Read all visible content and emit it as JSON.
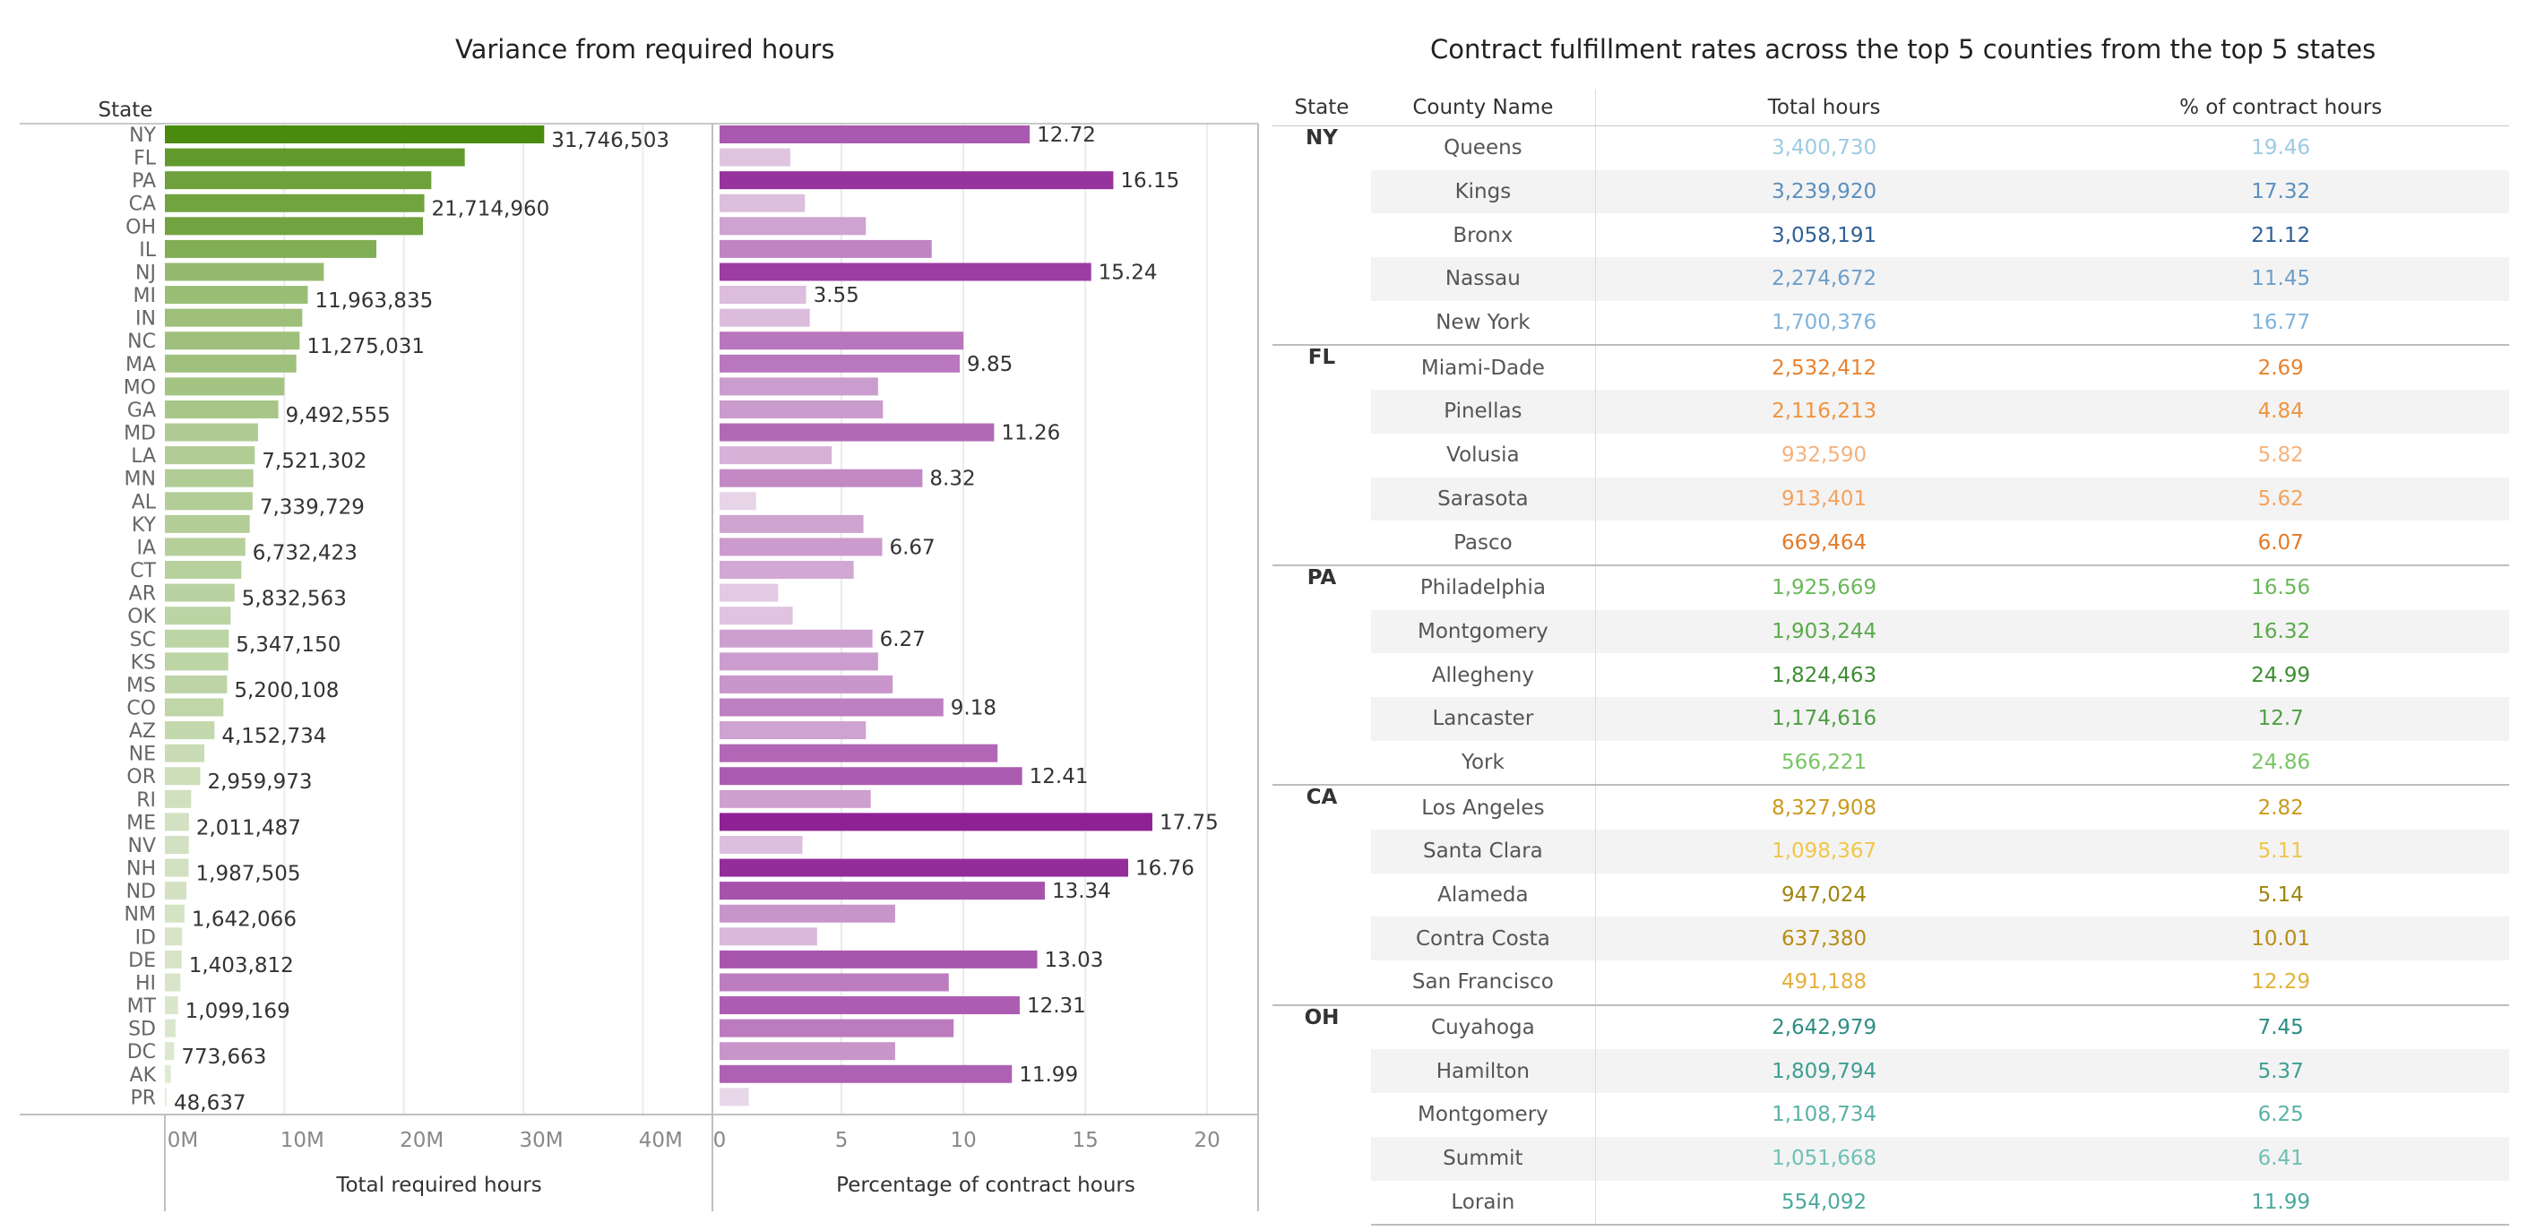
{
  "left_panel": {
    "title": "Variance from required hours",
    "state_header": "State",
    "bar_colors": [
      "#e6eedb",
      "#4a8a0c"
    ],
    "pct_colors": [
      "#efe4ef",
      "#8e2295"
    ]
  },
  "chart_data": [
    {
      "type": "bar",
      "title": "Variance from required hours",
      "orientation": "horizontal",
      "xlabel": "Total required hours",
      "ylabel": "State",
      "xlim": [
        0,
        45000000
      ],
      "xticks": [
        "0M",
        "10M",
        "20M",
        "30M",
        "40M"
      ],
      "categories": [
        "NY",
        "FL",
        "PA",
        "CA",
        "OH",
        "IL",
        "NJ",
        "MI",
        "IN",
        "NC",
        "MA",
        "MO",
        "GA",
        "MD",
        "LA",
        "MN",
        "AL",
        "KY",
        "IA",
        "CT",
        "AR",
        "OK",
        "SC",
        "KS",
        "MS",
        "CO",
        "AZ",
        "NE",
        "OR",
        "RI",
        "ME",
        "NV",
        "NH",
        "ND",
        "NM",
        "ID",
        "DE",
        "HI",
        "MT",
        "SD",
        "DC",
        "AK",
        "PR"
      ],
      "values": [
        31746503,
        25100000,
        22300000,
        21714960,
        21600000,
        17700000,
        13300000,
        11963835,
        11500000,
        11275031,
        11000000,
        10000000,
        9492555,
        7800000,
        7521302,
        7400000,
        7339729,
        7100000,
        6732423,
        6400000,
        5832563,
        5500000,
        5347150,
        5300000,
        5200108,
        4900000,
        4152734,
        3300000,
        2959973,
        2200000,
        2011487,
        2000000,
        1987505,
        1800000,
        1642066,
        1450000,
        1403812,
        1300000,
        1099169,
        900000,
        773663,
        500000,
        48637
      ],
      "labels": [
        "31,746,503",
        "",
        "",
        "21,714,960",
        "",
        "",
        "",
        "11,963,835",
        "",
        "11,275,031",
        "",
        "",
        "9,492,555",
        "",
        "7,521,302",
        "",
        "7,339,729",
        "",
        "6,732,423",
        "",
        "5,832,563",
        "",
        "5,347,150",
        "",
        "5,200,108",
        "",
        "4,152,734",
        "",
        "2,959,973",
        "",
        "2,011,487",
        "",
        "1,987,505",
        "",
        "1,642,066",
        "",
        "1,403,812",
        "",
        "1,099,169",
        "",
        "773,663",
        "",
        "48,637"
      ]
    },
    {
      "type": "bar",
      "orientation": "horizontal",
      "xlabel": "Percentage of contract hours",
      "xlim": [
        0,
        21.5
      ],
      "xticks": [
        "0",
        "5",
        "10",
        "15",
        "20"
      ],
      "categories": [
        "NY",
        "FL",
        "PA",
        "CA",
        "OH",
        "IL",
        "NJ",
        "MI",
        "IN",
        "NC",
        "MA",
        "MO",
        "GA",
        "MD",
        "LA",
        "MN",
        "AL",
        "KY",
        "IA",
        "CT",
        "AR",
        "OK",
        "SC",
        "KS",
        "MS",
        "CO",
        "AZ",
        "NE",
        "OR",
        "RI",
        "ME",
        "NV",
        "NH",
        "ND",
        "NM",
        "ID",
        "DE",
        "HI",
        "MT",
        "SD",
        "DC",
        "AK",
        "PR"
      ],
      "values": [
        12.72,
        2.9,
        16.15,
        3.5,
        6.0,
        8.7,
        15.24,
        3.55,
        3.7,
        10.0,
        9.85,
        6.5,
        6.7,
        11.26,
        4.6,
        8.32,
        1.5,
        5.9,
        6.67,
        5.5,
        2.4,
        3.0,
        6.27,
        6.5,
        7.1,
        9.18,
        6.0,
        11.4,
        12.41,
        6.2,
        17.75,
        3.4,
        16.76,
        13.34,
        7.2,
        4.0,
        13.03,
        9.4,
        12.31,
        9.6,
        7.2,
        11.99,
        1.2
      ],
      "labels": [
        "12.72",
        "",
        "16.15",
        "",
        "",
        "",
        "15.24",
        "3.55",
        "",
        "",
        "9.85",
        "",
        "",
        "11.26",
        "",
        "8.32",
        "",
        "",
        "6.67",
        "",
        "",
        "",
        "6.27",
        "",
        "",
        "9.18",
        "",
        "",
        "12.41",
        "",
        "17.75",
        "",
        "16.76",
        "13.34",
        "",
        "",
        "13.03",
        "",
        "12.31",
        "",
        "",
        "11.99",
        ""
      ]
    }
  ],
  "table": {
    "title": "Contract fulfillment rates across the top 5 counties from the top 5 states",
    "headers": [
      "State",
      "County Name",
      "Total hours",
      "% of contract hours"
    ],
    "groups": [
      {
        "state": "NY",
        "rows": [
          {
            "county": "Queens",
            "hours": "3,400,730",
            "pct": "19.46",
            "color": "#9ccbe3"
          },
          {
            "county": "Kings",
            "hours": "3,239,920",
            "pct": "17.32",
            "color": "#5b8fbf"
          },
          {
            "county": "Bronx",
            "hours": "3,058,191",
            "pct": "21.12",
            "color": "#2f5f96"
          },
          {
            "county": "Nassau",
            "hours": "2,274,672",
            "pct": "11.45",
            "color": "#6d9fcb"
          },
          {
            "county": "New York",
            "hours": "1,700,376",
            "pct": "16.77",
            "color": "#7fb3dc"
          }
        ]
      },
      {
        "state": "FL",
        "rows": [
          {
            "county": "Miami-Dade",
            "hours": "2,532,412",
            "pct": "2.69",
            "color": "#e9822f"
          },
          {
            "county": "Pinellas",
            "hours": "2,116,213",
            "pct": "4.84",
            "color": "#f0943f"
          },
          {
            "county": "Volusia",
            "hours": "932,590",
            "pct": "5.82",
            "color": "#f5b27d"
          },
          {
            "county": "Sarasota",
            "hours": "913,401",
            "pct": "5.62",
            "color": "#f3a35d"
          },
          {
            "county": "Pasco",
            "hours": "669,464",
            "pct": "6.07",
            "color": "#e47a27"
          }
        ]
      },
      {
        "state": "PA",
        "rows": [
          {
            "county": "Philadelphia",
            "hours": "1,925,669",
            "pct": "16.56",
            "color": "#6ab85a"
          },
          {
            "county": "Montgomery",
            "hours": "1,903,244",
            "pct": "16.32",
            "color": "#5aab4b"
          },
          {
            "county": "Allegheny",
            "hours": "1,824,463",
            "pct": "24.99",
            "color": "#3d8d33"
          },
          {
            "county": "Lancaster",
            "hours": "1,174,616",
            "pct": "12.7",
            "color": "#4e9e43"
          },
          {
            "county": "York",
            "hours": "566,221",
            "pct": "24.86",
            "color": "#79c464"
          }
        ]
      },
      {
        "state": "CA",
        "rows": [
          {
            "county": "Los Angeles",
            "hours": "8,327,908",
            "pct": "2.82",
            "color": "#c99a1e"
          },
          {
            "county": "Santa Clara",
            "hours": "1,098,367",
            "pct": "5.11",
            "color": "#f0c64a"
          },
          {
            "county": "Alameda",
            "hours": "947,024",
            "pct": "5.14",
            "color": "#a0840f"
          },
          {
            "county": "Contra Costa",
            "hours": "637,380",
            "pct": "10.01",
            "color": "#b88d17"
          },
          {
            "county": "San Francisco",
            "hours": "491,188",
            "pct": "12.29",
            "color": "#e2b13c"
          }
        ]
      },
      {
        "state": "OH",
        "rows": [
          {
            "county": "Cuyahoga",
            "hours": "2,642,979",
            "pct": "7.45",
            "color": "#2c8d83"
          },
          {
            "county": "Hamilton",
            "hours": "1,809,794",
            "pct": "5.37",
            "color": "#3e9e93"
          },
          {
            "county": "Montgomery",
            "hours": "1,108,734",
            "pct": "6.25",
            "color": "#5ab1a6"
          },
          {
            "county": "Summit",
            "hours": "1,051,668",
            "pct": "6.41",
            "color": "#6ec0b5"
          },
          {
            "county": "Lorain",
            "hours": "554,092",
            "pct": "11.99",
            "color": "#49a89c"
          }
        ]
      }
    ]
  }
}
